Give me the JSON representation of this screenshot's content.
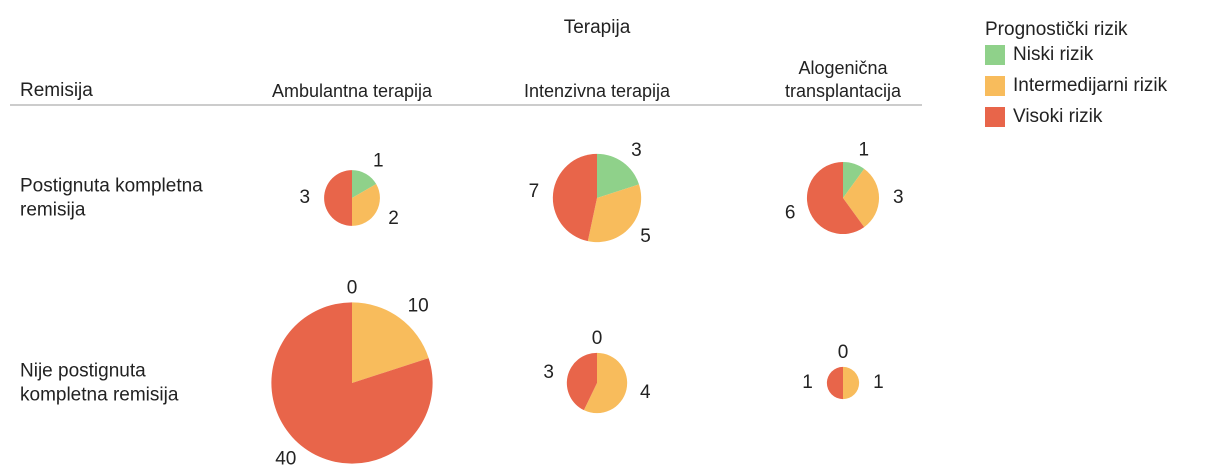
{
  "chart_data": {
    "type": "pie",
    "column_header": "Terapija",
    "row_header": "Remisija",
    "columns": [
      "Ambulantna terapija",
      "Intenzivna terapija",
      "Alogenična transplantacija"
    ],
    "rows": [
      "Postignuta kompletna remisija",
      "Nije postignuta kompletna remisija"
    ],
    "legend_title": "Prognostički rizik",
    "series": [
      {
        "name": "Niski rizik",
        "color": "#8fd18a",
        "values": [
          [
            1,
            3,
            1
          ],
          [
            0,
            0,
            0
          ]
        ]
      },
      {
        "name": "Intermedijarni rizik",
        "color": "#f8bc5c",
        "values": [
          [
            2,
            5,
            3
          ],
          [
            10,
            4,
            1
          ]
        ]
      },
      {
        "name": "Visoki rizik",
        "color": "#e8654a",
        "values": [
          [
            3,
            7,
            6
          ],
          [
            40,
            3,
            1
          ]
        ]
      }
    ]
  }
}
